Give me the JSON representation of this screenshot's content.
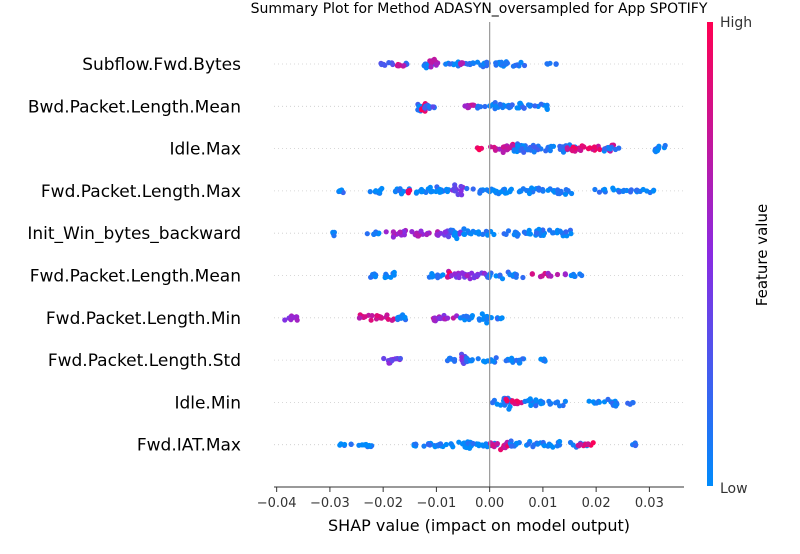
{
  "chart_data": {
    "type": "scatter",
    "title": "Summary Plot for Method ADASYN_oversampled for App SPOTIFY",
    "xlabel": "SHAP value (impact on model output)",
    "ylabel": "",
    "xlim": [
      -0.0405,
      0.0365
    ],
    "xticks": [
      -0.04,
      -0.03,
      -0.02,
      -0.01,
      0.0,
      0.01,
      0.02,
      0.03
    ],
    "xtick_labels": [
      "−0.04",
      "−0.03",
      "−0.02",
      "−0.01",
      "0.00",
      "0.01",
      "0.02",
      "0.03"
    ],
    "grid": false,
    "colorbar": {
      "label": "Feature value",
      "high_label": "High",
      "low_label": "Low",
      "high_color": "#ff0052",
      "low_color": "#008bfb"
    },
    "features": [
      {
        "name": "Subflow.Fwd.Bytes",
        "clusters": [
          {
            "x": [
              -0.0205,
              -0.0155
            ],
            "density": 0.25,
            "color": 0.2
          },
          {
            "x": [
              -0.0175,
              -0.016
            ],
            "density": 0.5,
            "color": 0.8
          },
          {
            "x": [
              -0.0125,
              -0.0105
            ],
            "density": 1.0,
            "color": 0.1
          },
          {
            "x": [
              -0.0115,
              -0.0095
            ],
            "density": 0.7,
            "color": 0.65
          },
          {
            "x": [
              -0.0085,
              -0.0035
            ],
            "density": 0.4,
            "color": 0.05
          },
          {
            "x": [
              -0.0055,
              -0.005
            ],
            "density": 0.3,
            "color": 0.6
          },
          {
            "x": [
              -0.0035,
              0.007
            ],
            "density": 0.55,
            "color": 0.05
          },
          {
            "x": [
              0.0105,
              0.0125
            ],
            "density": 0.2,
            "color": 0.1
          }
        ]
      },
      {
        "name": "Bwd.Packet.Length.Mean",
        "clusters": [
          {
            "x": [
              -0.0135,
              -0.0128
            ],
            "density": 1.0,
            "color": 0.1
          },
          {
            "x": [
              -0.013,
              -0.012
            ],
            "density": 0.8,
            "color": 0.85
          },
          {
            "x": [
              -0.0125,
              -0.01
            ],
            "density": 0.45,
            "color": 0.2
          },
          {
            "x": [
              -0.0055,
              -0.0025
            ],
            "density": 0.3,
            "color": 0.7
          },
          {
            "x": [
              -0.0025,
              0.011
            ],
            "density": 0.55,
            "color": 0.05
          }
        ]
      },
      {
        "name": "Idle.Max",
        "clusters": [
          {
            "x": [
              -0.0025,
              -0.0015
            ],
            "density": 0.2,
            "color": 0.95
          },
          {
            "x": [
              -0.0005,
              0.003
            ],
            "density": 0.3,
            "color": 0.7
          },
          {
            "x": [
              0.0025,
              0.005
            ],
            "density": 0.7,
            "color": 0.8
          },
          {
            "x": [
              0.0045,
              0.006
            ],
            "density": 1.0,
            "color": 0.1
          },
          {
            "x": [
              0.006,
              0.0165
            ],
            "density": 0.7,
            "color": 0.1
          },
          {
            "x": [
              0.0145,
              0.0235
            ],
            "density": 0.6,
            "color": 0.85
          },
          {
            "x": [
              0.021,
              0.0245
            ],
            "density": 0.3,
            "color": 0.05
          },
          {
            "x": [
              0.0305,
              0.033
            ],
            "density": 0.5,
            "color": 0.05
          }
        ]
      },
      {
        "name": "Fwd.Packet.Length.Max",
        "clusters": [
          {
            "x": [
              -0.0285,
              -0.0275
            ],
            "density": 0.3,
            "color": 0.05
          },
          {
            "x": [
              -0.0225,
              -0.0145
            ],
            "density": 0.4,
            "color": 0.05
          },
          {
            "x": [
              -0.0155,
              -0.015
            ],
            "density": 0.2,
            "color": 0.95
          },
          {
            "x": [
              -0.0145,
              -0.0075
            ],
            "density": 0.6,
            "color": 0.05
          },
          {
            "x": [
              -0.007,
              -0.005
            ],
            "density": 1.0,
            "color": 0.45
          },
          {
            "x": [
              -0.005,
              0.0155
            ],
            "density": 0.55,
            "color": 0.05
          },
          {
            "x": [
              0.0185,
              0.031
            ],
            "density": 0.35,
            "color": 0.05
          }
        ]
      },
      {
        "name": "Init_Win_bytes_backward",
        "clusters": [
          {
            "x": [
              -0.0295,
              -0.029
            ],
            "density": 0.3,
            "color": 0.05
          },
          {
            "x": [
              -0.023,
              -0.0195
            ],
            "density": 0.25,
            "color": 0.05
          },
          {
            "x": [
              -0.0195,
              -0.0085
            ],
            "density": 0.55,
            "color": 0.6
          },
          {
            "x": [
              -0.0085,
              -0.005
            ],
            "density": 0.6,
            "color": 0.35
          },
          {
            "x": [
              -0.007,
              -0.006
            ],
            "density": 1.0,
            "color": 0.05
          },
          {
            "x": [
              -0.005,
              0.0155
            ],
            "density": 0.55,
            "color": 0.05
          }
        ]
      },
      {
        "name": "Fwd.Packet.Length.Mean",
        "clusters": [
          {
            "x": [
              -0.0225,
              -0.0175
            ],
            "density": 0.45,
            "color": 0.05
          },
          {
            "x": [
              -0.0115,
              -0.0085
            ],
            "density": 0.3,
            "color": 0.05
          },
          {
            "x": [
              -0.008,
              -0.0075
            ],
            "density": 1.0,
            "color": 0.8
          },
          {
            "x": [
              -0.0075,
              -0.0005
            ],
            "density": 0.6,
            "color": 0.5
          },
          {
            "x": [
              -0.0005,
              0.0065
            ],
            "density": 0.5,
            "color": 0.05
          },
          {
            "x": [
              0.008,
              0.0145
            ],
            "density": 0.3,
            "color": 0.7
          },
          {
            "x": [
              0.015,
              0.0175
            ],
            "density": 0.2,
            "color": 0.05
          }
        ]
      },
      {
        "name": "Fwd.Packet.Length.Min",
        "clusters": [
          {
            "x": [
              -0.0385,
              -0.036
            ],
            "density": 0.5,
            "color": 0.5
          },
          {
            "x": [
              -0.0245,
              -0.018
            ],
            "density": 0.55,
            "color": 0.75
          },
          {
            "x": [
              -0.018,
              -0.0155
            ],
            "density": 0.5,
            "color": 0.05
          },
          {
            "x": [
              -0.011,
              -0.006
            ],
            "density": 0.5,
            "color": 0.6
          },
          {
            "x": [
              -0.0055,
              -0.0015
            ],
            "density": 0.4,
            "color": 0.05
          },
          {
            "x": [
              -0.0015,
              -0.0005
            ],
            "density": 1.0,
            "color": 0.05
          },
          {
            "x": [
              -0.0005,
              0.0025
            ],
            "density": 0.3,
            "color": 0.05
          }
        ]
      },
      {
        "name": "Fwd.Packet.Length.Std",
        "clusters": [
          {
            "x": [
              -0.021,
              -0.0165
            ],
            "density": 0.4,
            "color": 0.4
          },
          {
            "x": [
              -0.0085,
              -0.0065
            ],
            "density": 0.3,
            "color": 0.05
          },
          {
            "x": [
              -0.0055,
              -0.0045
            ],
            "density": 1.0,
            "color": 0.45
          },
          {
            "x": [
              -0.0045,
              0.007
            ],
            "density": 0.5,
            "color": 0.05
          },
          {
            "x": [
              0.0095,
              0.0105
            ],
            "density": 0.2,
            "color": 0.05
          }
        ]
      },
      {
        "name": "Idle.Min",
        "clusters": [
          {
            "x": [
              0.0005,
              0.003
            ],
            "density": 0.4,
            "color": 0.05
          },
          {
            "x": [
              0.0025,
              0.004
            ],
            "density": 1.0,
            "color": 0.1
          },
          {
            "x": [
              0.003,
              0.0065
            ],
            "density": 0.5,
            "color": 0.85
          },
          {
            "x": [
              0.0065,
              0.0145
            ],
            "density": 0.6,
            "color": 0.05
          },
          {
            "x": [
              0.0185,
              0.027
            ],
            "density": 0.45,
            "color": 0.05
          }
        ]
      },
      {
        "name": "Fwd.IAT.Max",
        "clusters": [
          {
            "x": [
              -0.0285,
              -0.0235
            ],
            "density": 0.2,
            "color": 0.05
          },
          {
            "x": [
              -0.0235,
              -0.022
            ],
            "density": 0.5,
            "color": 0.05
          },
          {
            "x": [
              -0.0145,
              -0.0135
            ],
            "density": 0.2,
            "color": 0.05
          },
          {
            "x": [
              -0.0145,
              -0.0045
            ],
            "density": 0.45,
            "color": 0.05
          },
          {
            "x": [
              -0.0045,
              -0.0035
            ],
            "density": 1.0,
            "color": 0.05
          },
          {
            "x": [
              -0.0035,
              0.0015
            ],
            "density": 0.4,
            "color": 0.05
          },
          {
            "x": [
              0.0,
              0.0035
            ],
            "density": 0.65,
            "color": 0.8
          },
          {
            "x": [
              0.0035,
              0.0185
            ],
            "density": 0.45,
            "color": 0.05
          },
          {
            "x": [
              0.016,
              0.0195
            ],
            "density": 0.3,
            "color": 0.85
          },
          {
            "x": [
              0.0265,
              0.0275
            ],
            "density": 0.2,
            "color": 0.05
          }
        ]
      }
    ]
  }
}
